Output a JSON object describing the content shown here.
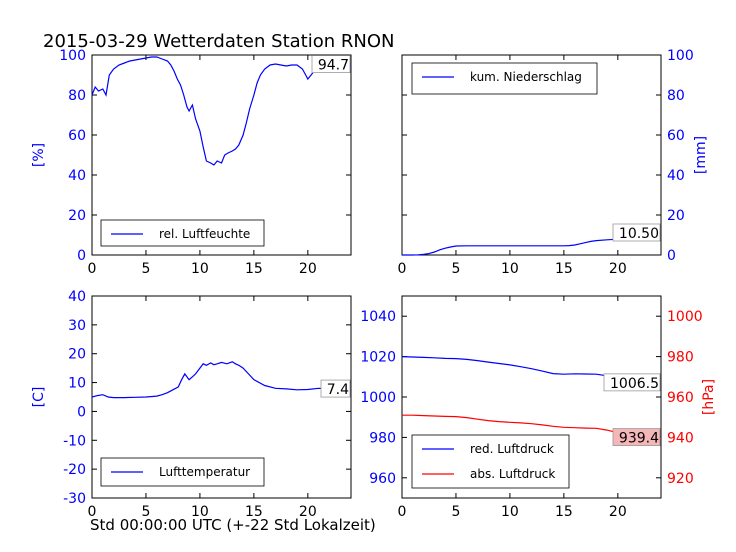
{
  "figure": {
    "title": "2015-03-29 Wetterdaten Station RNON",
    "xlabel": "Std 00:00:00 UTC (+-22 Std Lokalzeit)"
  },
  "colors": {
    "blue": "#0000ff",
    "red": "#ff0000",
    "black": "#000000",
    "red_box": "#f4b6b6"
  },
  "chart_data": [
    {
      "type": "line",
      "panel": "top-left",
      "x": [
        0,
        0.3,
        0.6,
        1,
        1.3,
        1.6,
        2,
        2.5,
        3,
        3.5,
        4,
        4.5,
        5,
        5.5,
        6,
        6.5,
        7,
        7.3,
        7.6,
        7.9,
        8.2,
        8.5,
        8.8,
        9,
        9.3,
        9.6,
        10,
        10.3,
        10.6,
        11,
        11.3,
        11.6,
        12,
        12.3,
        12.6,
        13,
        13.3,
        13.6,
        14,
        14.3,
        14.6,
        15,
        15.3,
        15.6,
        16,
        16.5,
        17,
        17.5,
        18,
        18.5,
        19,
        19.5,
        19.8,
        20,
        20.3,
        20.6,
        21,
        21.5,
        22,
        22.5,
        23,
        23.5,
        24
      ],
      "series": [
        {
          "name": "rel. Luftfeuchte",
          "color": "#0000ff",
          "values": [
            80,
            84,
            82,
            83,
            80,
            90,
            93,
            95,
            96,
            97,
            97.5,
            98,
            98.5,
            99,
            99,
            98,
            97,
            95,
            92,
            88,
            85,
            80,
            74,
            72,
            75,
            68,
            62,
            54,
            47,
            46,
            45,
            47,
            46,
            50,
            51,
            52,
            53,
            55,
            60,
            66,
            73,
            80,
            86,
            90,
            93,
            95,
            95.5,
            95,
            94.5,
            95,
            95,
            93,
            90,
            88,
            90,
            92,
            93,
            93.5,
            94,
            94,
            94,
            94.5,
            94.7
          ]
        }
      ],
      "legend": "lower-center",
      "ylabel": "[%]",
      "ylim": [
        0,
        100
      ],
      "xlim": [
        0,
        24
      ],
      "yticks": [
        0,
        20,
        40,
        60,
        80,
        100
      ],
      "xticks": [
        0,
        5,
        10,
        15,
        20
      ],
      "yaxis_side": "left",
      "last_value_label": "94.7"
    },
    {
      "type": "line",
      "panel": "top-right",
      "x": [
        0,
        1,
        1.5,
        2,
        2.5,
        3,
        3.5,
        4,
        4.5,
        5,
        6,
        7,
        8,
        9,
        10,
        11,
        12,
        13,
        14,
        15,
        15.5,
        16,
        16.5,
        17,
        17.5,
        18,
        19,
        20,
        21,
        22,
        23,
        24
      ],
      "series": [
        {
          "name": "kum. Niederschlag",
          "color": "#0000ff",
          "values": [
            0,
            0,
            0.1,
            0.3,
            0.7,
            1.5,
            2.6,
            3.4,
            4,
            4.5,
            4.6,
            4.6,
            4.6,
            4.6,
            4.6,
            4.6,
            4.6,
            4.6,
            4.6,
            4.6,
            4.7,
            5,
            5.6,
            6.2,
            6.8,
            7.2,
            7.6,
            7.9,
            8.5,
            9.4,
            10.1,
            10.5
          ]
        }
      ],
      "legend": "upper-left",
      "ylabel": "[mm]",
      "ylim": [
        0,
        100
      ],
      "xlim": [
        0,
        24
      ],
      "yticks": [
        0,
        20,
        40,
        60,
        80,
        100
      ],
      "xticks": [
        0,
        5,
        10,
        15,
        20
      ],
      "yaxis_side": "right",
      "last_value_label": "10.50"
    },
    {
      "type": "line",
      "panel": "bottom-left",
      "x": [
        0,
        0.5,
        1,
        1.5,
        2,
        3,
        4,
        5,
        6,
        6.5,
        7,
        7.5,
        8,
        8.3,
        8.6,
        9,
        9.3,
        9.6,
        10,
        10.3,
        10.6,
        11,
        11.3,
        11.6,
        12,
        12.5,
        13,
        13.3,
        13.6,
        14,
        14.5,
        15,
        16,
        17,
        18,
        19,
        20,
        21,
        22,
        23,
        24
      ],
      "series": [
        {
          "name": "Lufttemperatur",
          "color": "#0000ff",
          "values": [
            5,
            5.5,
            5.8,
            5,
            4.8,
            4.8,
            4.9,
            5,
            5.3,
            5.8,
            6.5,
            7.5,
            8.5,
            11,
            13,
            11,
            12,
            13,
            15,
            16.5,
            16,
            16.8,
            16.2,
            16.5,
            17,
            16.5,
            17.2,
            16.5,
            16,
            15,
            13,
            11,
            9,
            8,
            7.8,
            7.5,
            7.6,
            8,
            7.8,
            7.5,
            7.4
          ]
        }
      ],
      "legend": "lower-center",
      "ylabel": "[C]",
      "ylim": [
        -30,
        40
      ],
      "xlim": [
        0,
        24
      ],
      "yticks": [
        -30,
        -20,
        -10,
        0,
        10,
        20,
        30,
        40
      ],
      "xticks": [
        0,
        5,
        10,
        15,
        20
      ],
      "yaxis_side": "left",
      "last_value_label": "7.4"
    },
    {
      "type": "line",
      "panel": "bottom-right",
      "x": [
        0,
        1,
        2,
        3,
        4,
        5,
        6,
        7,
        8,
        9,
        10,
        11,
        12,
        13,
        14,
        15,
        16,
        17,
        18,
        19,
        20,
        21,
        22,
        23,
        24
      ],
      "series": [
        {
          "name": "red. Luftdruck",
          "color": "#0000ff",
          "axis": "left",
          "values": [
            1020,
            1019.8,
            1019.6,
            1019.4,
            1019.1,
            1019,
            1018.6,
            1018,
            1017.3,
            1016.6,
            1015.9,
            1015,
            1014,
            1012.8,
            1011.6,
            1011.3,
            1011.5,
            1011.4,
            1011.3,
            1010.5,
            1009.3,
            1008.5,
            1007.8,
            1007,
            1006.5
          ]
        },
        {
          "name": "abs. Luftdruck",
          "color": "#ff0000",
          "axis": "right",
          "values": [
            951,
            951,
            950.8,
            950.6,
            950.4,
            950.3,
            949.8,
            949,
            948.3,
            947.8,
            947.5,
            947.2,
            946.8,
            946.2,
            945.5,
            945,
            944.8,
            944.6,
            944.5,
            943.6,
            942.3,
            941.2,
            940.3,
            939.8,
            939.4
          ]
        }
      ],
      "legend": "lower-left",
      "ylabel_right": "[hPa]",
      "ylim_left": [
        950,
        1050
      ],
      "ylim_right": [
        910,
        1010
      ],
      "yticks_left": [
        960,
        980,
        1000,
        1020,
        1040
      ],
      "yticks_right": [
        920,
        940,
        960,
        980,
        1000
      ],
      "xlim": [
        0,
        24
      ],
      "xticks": [
        0,
        5,
        10,
        15,
        20
      ],
      "last_value_labels": [
        "1006.5",
        "939.4"
      ]
    }
  ]
}
